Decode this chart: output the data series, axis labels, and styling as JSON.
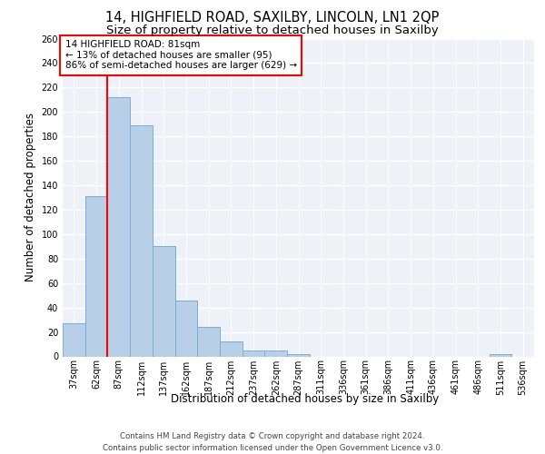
{
  "title1": "14, HIGHFIELD ROAD, SAXILBY, LINCOLN, LN1 2QP",
  "title2": "Size of property relative to detached houses in Saxilby",
  "xlabel": "Distribution of detached houses by size in Saxilby",
  "ylabel": "Number of detached properties",
  "footer1": "Contains HM Land Registry data © Crown copyright and database right 2024.",
  "footer2": "Contains public sector information licensed under the Open Government Licence v3.0.",
  "categories": [
    "37sqm",
    "62sqm",
    "87sqm",
    "112sqm",
    "137sqm",
    "162sqm",
    "187sqm",
    "212sqm",
    "237sqm",
    "262sqm",
    "287sqm",
    "311sqm",
    "336sqm",
    "361sqm",
    "386sqm",
    "411sqm",
    "436sqm",
    "461sqm",
    "486sqm",
    "511sqm",
    "536sqm"
  ],
  "values": [
    27,
    131,
    212,
    189,
    90,
    46,
    24,
    12,
    5,
    5,
    2,
    0,
    0,
    0,
    0,
    0,
    0,
    0,
    0,
    2,
    0
  ],
  "bar_color": "#b8cfe8",
  "bar_edgecolor": "#7aaed6",
  "vline_x": 1.5,
  "annotation_text": "14 HIGHFIELD ROAD: 81sqm\n← 13% of detached houses are smaller (95)\n86% of semi-detached houses are larger (629) →",
  "annotation_box_color": "white",
  "annotation_box_edgecolor": "red",
  "vline_color": "red",
  "ylim": [
    0,
    260
  ],
  "yticks": [
    0,
    20,
    40,
    60,
    80,
    100,
    120,
    140,
    160,
    180,
    200,
    220,
    240,
    260
  ],
  "background_color": "#eef2f8",
  "grid_color": "white",
  "title_fontsize": 10.5,
  "subtitle_fontsize": 9.5,
  "ylabel_fontsize": 8.5,
  "xlabel_fontsize": 8.5,
  "tick_fontsize": 7,
  "annotation_fontsize": 7.5,
  "footer_fontsize": 6.2
}
